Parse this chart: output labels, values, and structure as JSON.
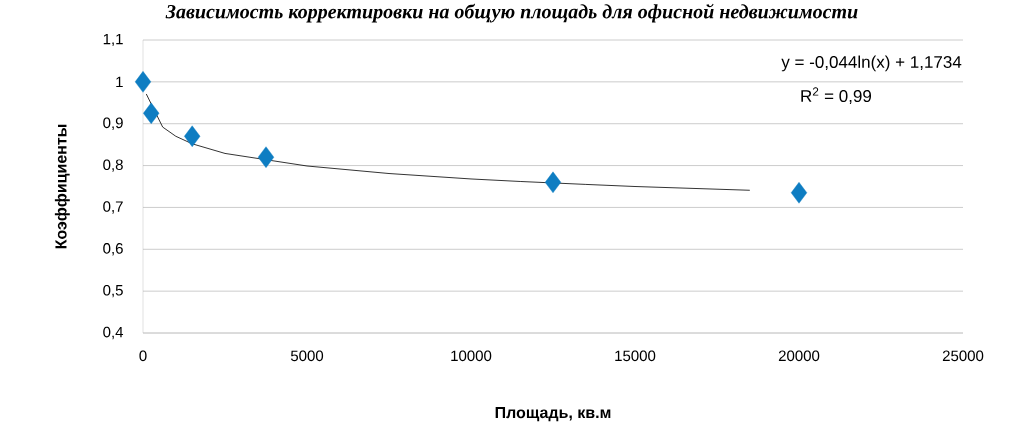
{
  "chart_data": {
    "type": "scatter",
    "title": "Зависимость корректировки на общую площадь для офисной недвижимости",
    "xlabel": "Площадь, кв.м",
    "ylabel": "Коэффициенты",
    "annotations": [
      "y = -0,044ln(x) + 1,1734",
      "R$^{2}$ = 0,99"
    ],
    "x": [
      0,
      250,
      1500,
      3750,
      12500,
      20000
    ],
    "series": [
      {
        "color": "#0e7dc2",
        "marker": "diamond",
        "values": [
          1.0,
          0.925,
          0.87,
          0.82,
          0.76,
          0.735
        ]
      },
      {
        "type": "line",
        "color": "#000000",
        "marker": "none",
        "line_style": "solid",
        "x": [
          100,
          600,
          1000,
          1500,
          2500,
          5000,
          7500,
          10000,
          11500,
          13500,
          15000,
          18500
        ],
        "values": [
          0.971,
          0.892,
          0.87,
          0.852,
          0.829,
          0.799,
          0.781,
          0.768,
          0.762,
          0.755,
          0.75,
          0.741
        ]
      }
    ],
    "xlim": [
      0,
      25000
    ],
    "ylim": [
      0.4,
      1.1
    ],
    "xticks": [
      0,
      5000,
      10000,
      15000,
      20000,
      25000
    ],
    "yticks": [
      {
        "value": 0.4,
        "label": "0,4"
      },
      {
        "value": 0.5,
        "label": "0,5"
      },
      {
        "value": 0.6,
        "label": "0,6"
      },
      {
        "value": 0.7,
        "label": "0,7"
      },
      {
        "value": 0.8,
        "label": "0,8"
      },
      {
        "value": 0.9,
        "label": "0,9"
      },
      {
        "value": 1,
        "label": "1"
      },
      {
        "value": 1.1,
        "label": "1,1"
      }
    ],
    "grid": "y"
  }
}
